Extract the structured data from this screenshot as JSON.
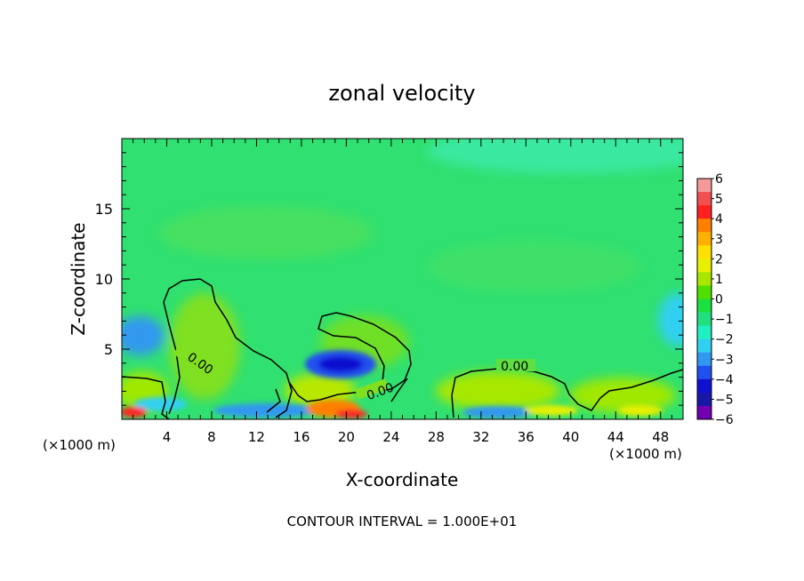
{
  "chart_data": {
    "type": "heatmap",
    "title": "zonal velocity",
    "xlabel": "X-coordinate",
    "ylabel": "Z-coordinate",
    "x_unit_left": "(×1000 m)",
    "x_unit_right": "(×1000 m)",
    "xlim": [
      0,
      50
    ],
    "ylim": [
      0,
      20
    ],
    "x_ticks": [
      4,
      8,
      12,
      16,
      20,
      24,
      28,
      32,
      36,
      40,
      44,
      48
    ],
    "y_ticks": [
      5,
      10,
      15
    ],
    "colorbar": {
      "levels": [
        6,
        5,
        4,
        3,
        2,
        1,
        0,
        -1,
        -2,
        -3,
        -4,
        -5,
        -6
      ],
      "level_labels": [
        "6",
        "5",
        "4",
        "3",
        "2",
        "1",
        "0",
        "−1",
        "−2",
        "−3",
        "−4",
        "−5",
        "−6"
      ],
      "colors": [
        "#f49a9a",
        "#f05050",
        "#ff2020",
        "#ff8000",
        "#ffb000",
        "#ffe000",
        "#e8f000",
        "#a8e800",
        "#50e000",
        "#1ae040",
        "#20e080",
        "#20f0c0",
        "#30d0f0",
        "#3098f0",
        "#2050f0",
        "#1010d0",
        "#1818a8",
        "#7000b0"
      ]
    },
    "contour_labels": [
      {
        "text": "0.00",
        "x": 7.0,
        "z": 4.0
      },
      {
        "text": "0.00",
        "x": 23.0,
        "z": 2.0
      },
      {
        "text": "0.00",
        "x": 35.0,
        "z": 3.8
      }
    ],
    "footer": "CONTOUR INTERVAL = 1.000E+01"
  }
}
